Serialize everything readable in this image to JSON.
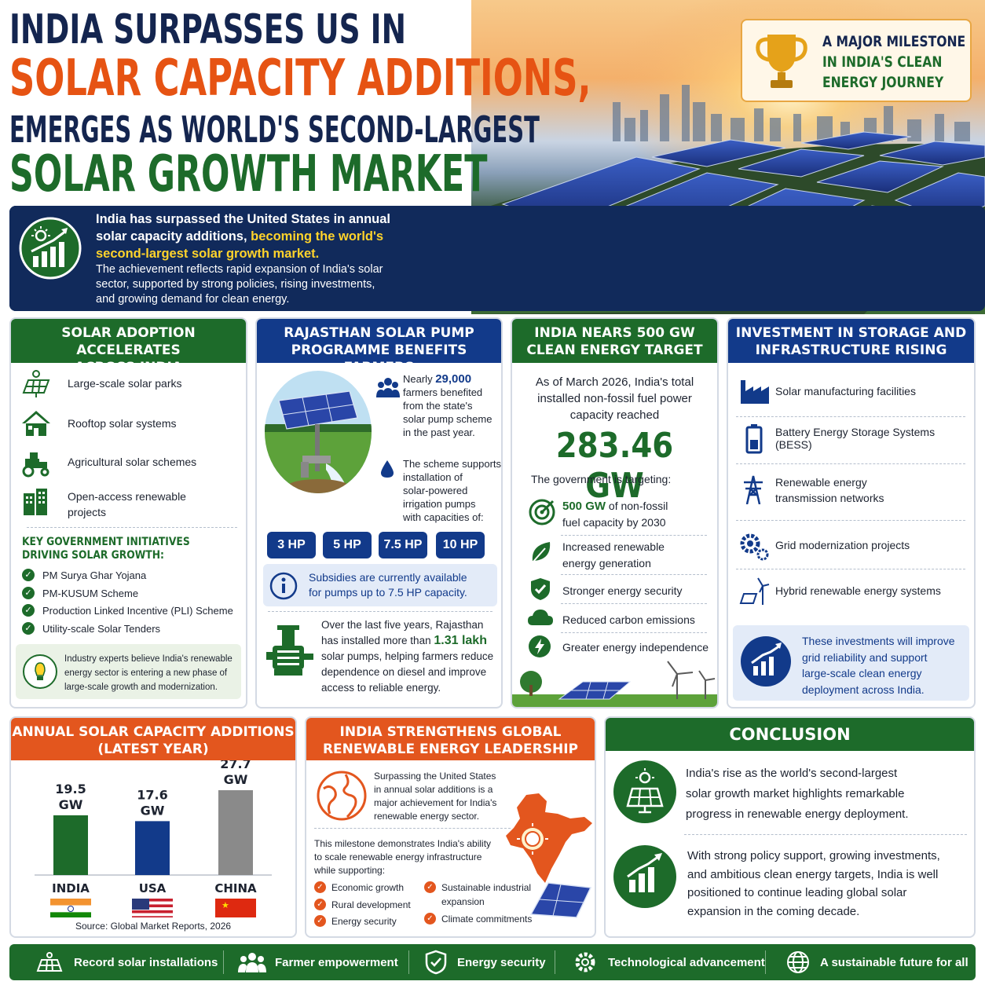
{
  "header": {
    "line1": "INDIA SURPASSES US IN",
    "line2": "SOLAR CAPACITY ADDITIONS,",
    "line3": "EMERGES AS WORLD'S SECOND-LARGEST",
    "line4": "SOLAR GROWTH MARKET"
  },
  "milestone": {
    "line1": "A MAJOR MILESTONE",
    "line2": "IN INDIA'S CLEAN",
    "line3": "ENERGY JOURNEY",
    "icon": "trophy-icon"
  },
  "intro": {
    "text1a": "India has surpassed the United States in annual",
    "text1b": "solar capacity additions,",
    "text1c": "becoming the world's",
    "text1d": "second-largest solar growth market.",
    "text2a": "The achievement reflects rapid expansion of India's solar",
    "text2b": "sector, supported by strong policies, rising investments,",
    "text2c": "and growing demand for clean energy."
  },
  "adoption": {
    "title1": "SOLAR ADOPTION ACCELERATES",
    "title2": "ACROSS INDIA",
    "items": [
      {
        "label": "Large-scale solar parks",
        "label2": ""
      },
      {
        "label": "Rooftop solar systems",
        "label2": ""
      },
      {
        "label": "Agricultural solar schemes",
        "label2": ""
      },
      {
        "label": "Open-access renewable",
        "label2": "projects"
      }
    ],
    "initiatives_title1": "KEY GOVERNMENT INITIATIVES",
    "initiatives_title2": "DRIVING SOLAR GROWTH:",
    "initiatives": [
      "PM Surya Ghar Yojana",
      "PM-KUSUM Scheme",
      "Production Linked Incentive (PLI) Scheme",
      "Utility-scale Solar Tenders"
    ],
    "expert1": "Industry experts believe India's renewable",
    "expert2": "energy sector is entering a new phase of",
    "expert3": "large-scale growth and modernization."
  },
  "rajasthan": {
    "title1": "RAJASTHAN SOLAR PUMP",
    "title2": "PROGRAMME BENEFITS FARMERS",
    "f1a": "Nearly",
    "f1num": "29,000",
    "f1b": "farmers benefited",
    "f1c": "from the state's",
    "f1d": "solar pump scheme",
    "f1e": "in the past year.",
    "s1": "The scheme supports",
    "s2": "installation of",
    "s3": "solar-powered",
    "s4": "irrigation pumps",
    "s5": "with capacities of:",
    "hp": [
      "3 HP",
      "5 HP",
      "7.5 HP",
      "10 HP"
    ],
    "subsidy1": "Subsidies are currently available",
    "subsidy2": "for pumps up to 7.5 HP capacity.",
    "p1": "Over the last five years, Rajasthan",
    "p2a": "has installed more than",
    "p2num": "1.31 lakh",
    "p3": "solar pumps, helping farmers reduce",
    "p4": "dependence on diesel and improve",
    "p5": "access to reliable energy."
  },
  "target": {
    "title1": "INDIA NEARS 500 GW",
    "title2": "CLEAN ENERGY TARGET",
    "t1": "As of March 2026, India's total",
    "t2": "installed non-fossil fuel power",
    "t3": "capacity reached",
    "big": "283.46 GW",
    "targeting": "The government is targeting:",
    "g1a": "500 GW",
    "g1b": "of non-fossil",
    "g1c": "fuel capacity by 2030",
    "g2a": "Increased renewable",
    "g2b": "energy generation",
    "g3": "Stronger energy security",
    "g4": "Reduced carbon emissions",
    "g5": "Greater energy independence"
  },
  "investment": {
    "title1": "INVESTMENT IN STORAGE AND",
    "title2": "INFRASTRUCTURE RISING",
    "items": [
      {
        "label": "Solar manufacturing facilities",
        "label2": ""
      },
      {
        "label": "Battery Energy Storage Systems (BESS)",
        "label2": ""
      },
      {
        "label": "Renewable energy",
        "label2": "transmission networks"
      },
      {
        "label": "Grid modernization projects",
        "label2": ""
      },
      {
        "label": "Hybrid renewable energy systems",
        "label2": ""
      }
    ],
    "note1": "These investments will improve",
    "note2": "grid reliability and support",
    "note3": "large-scale clean energy",
    "note4": "deployment across India."
  },
  "annual": {
    "title1": "ANNUAL SOLAR CAPACITY ADDITIONS",
    "title2": "(LATEST YEAR)",
    "source": "Source: Global Market Reports, 2026"
  },
  "chart_data": {
    "type": "bar",
    "categories": [
      "INDIA",
      "USA",
      "CHINA"
    ],
    "values": [
      19.5,
      17.6,
      27.7
    ],
    "value_labels": [
      "19.5 GW",
      "17.6 GW",
      "27.7 GW"
    ],
    "unit": "GW",
    "colors": [
      "#1d6b2a",
      "#123a8a",
      "#8a8a8a"
    ],
    "title": "ANNUAL SOLAR CAPACITY ADDITIONS (LATEST YEAR)",
    "ylim": [
      0,
      30
    ]
  },
  "leadership": {
    "title1": "INDIA STRENGTHENS GLOBAL",
    "title2": "RENEWABLE ENERGY LEADERSHIP",
    "a1": "Surpassing the United States",
    "a2": "in annual solar additions is a",
    "a3": "major achievement for India's",
    "a4": "renewable energy sector.",
    "b1": "This milestone demonstrates India's ability",
    "b2": "to scale renewable energy infrastructure",
    "b3": "while supporting:",
    "left": [
      "Economic growth",
      "Rural development",
      "Energy security"
    ],
    "right1a": "Sustainable industrial",
    "right1b": "expansion",
    "right2": "Climate commitments"
  },
  "conclusion": {
    "title": "CONCLUSION",
    "c1": "India's rise as the world's second-largest",
    "c2": "solar growth market highlights remarkable",
    "c3": "progress in renewable energy deployment.",
    "d1": "With strong policy support, growing investments,",
    "d2": "and ambitious clean energy targets, India is well",
    "d3": "positioned to continue leading global solar",
    "d4": "expansion in the coming decade."
  },
  "footer": [
    "Record solar installations",
    "Farmer empowerment",
    "Energy security",
    "Technological advancement",
    "A sustainable future for all"
  ]
}
